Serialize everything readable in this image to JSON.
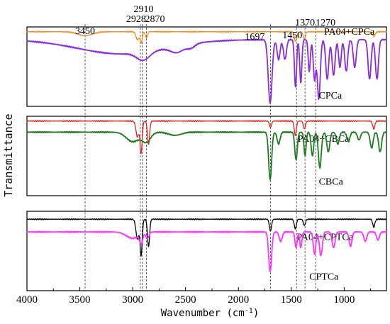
{
  "chart_data": {
    "type": "line",
    "title": "",
    "xlabel": "Wavenumber (cm",
    "xlabel_superscript": "-1",
    "xlabel_suffix": ")",
    "ylabel": "Transmittance",
    "xlim": [
      4000,
      600
    ],
    "x_reversed": true,
    "x_ticks": [
      4000,
      3500,
      3000,
      2500,
      2000,
      1500,
      1000
    ],
    "grid": false,
    "legend": "inline labels next to curves",
    "reference_lines": [
      3450,
      2928,
      2910,
      2870,
      1697,
      1450,
      1370,
      1270
    ],
    "peak_labels": [
      {
        "text": "3450",
        "x": 3450
      },
      {
        "text": "2928",
        "x": 2928
      },
      {
        "text": "2910",
        "x": 2910
      },
      {
        "text": "2870",
        "x": 2870
      },
      {
        "text": "1697",
        "x": 1697
      },
      {
        "text": "1450",
        "x": 1450
      },
      {
        "text": "1370",
        "x": 1370
      },
      {
        "text": "1270",
        "x": 1270
      }
    ],
    "panels": [
      {
        "series": [
          {
            "name": "PA04+CPCa",
            "color": "#f08a1c",
            "baseline": 0.06,
            "label_x": 1190,
            "label_y": 0.1,
            "features": [
              {
                "x": 3450,
                "w": 70,
                "d": 0.05
              },
              {
                "x": 2955,
                "w": 14,
                "d": 0.1
              },
              {
                "x": 2920,
                "w": 10,
                "d": 0.14
              },
              {
                "x": 2870,
                "w": 10,
                "d": 0.08
              },
              {
                "x": 1460,
                "w": 12,
                "d": 0.12
              },
              {
                "x": 1377,
                "w": 10,
                "d": 0.1
              },
              {
                "x": 720,
                "w": 12,
                "d": 0.06
              }
            ]
          },
          {
            "name": "CPCa",
            "color": "#8a2be2",
            "baseline": 0.16,
            "label_x": 1240,
            "label_y": 0.9,
            "features": [
              {
                "x": 3100,
                "w": 420,
                "d": 0.18
              },
              {
                "x": 2900,
                "w": 60,
                "d": 0.1
              },
              {
                "x": 2580,
                "w": 60,
                "d": 0.08
              },
              {
                "x": 2450,
                "w": 40,
                "d": 0.05
              },
              {
                "x": 1700,
                "w": 18,
                "d": 0.8
              },
              {
                "x": 1620,
                "w": 14,
                "d": 0.25
              },
              {
                "x": 1560,
                "w": 14,
                "d": 0.25
              },
              {
                "x": 1460,
                "w": 10,
                "d": 0.6
              },
              {
                "x": 1410,
                "w": 10,
                "d": 0.55
              },
              {
                "x": 1330,
                "w": 10,
                "d": 0.4
              },
              {
                "x": 1280,
                "w": 12,
                "d": 0.5
              },
              {
                "x": 1240,
                "w": 14,
                "d": 0.75
              },
              {
                "x": 1160,
                "w": 14,
                "d": 0.5
              },
              {
                "x": 1100,
                "w": 14,
                "d": 0.45
              },
              {
                "x": 1040,
                "w": 12,
                "d": 0.35
              },
              {
                "x": 980,
                "w": 14,
                "d": 0.4
              },
              {
                "x": 900,
                "w": 14,
                "d": 0.35
              },
              {
                "x": 760,
                "w": 14,
                "d": 0.5
              },
              {
                "x": 690,
                "w": 14,
                "d": 0.5
              }
            ]
          }
        ]
      },
      {
        "series": [
          {
            "name": "PA04+CBCa",
            "color": "#e8201c",
            "baseline": 0.06,
            "label_x": 1440,
            "label_y": 0.32,
            "features": [
              {
                "x": 2955,
                "w": 14,
                "d": 0.2
              },
              {
                "x": 2920,
                "w": 10,
                "d": 0.4
              },
              {
                "x": 2850,
                "w": 10,
                "d": 0.3
              },
              {
                "x": 1697,
                "w": 10,
                "d": 0.08
              },
              {
                "x": 1462,
                "w": 10,
                "d": 0.18
              },
              {
                "x": 1376,
                "w": 10,
                "d": 0.1
              },
              {
                "x": 720,
                "w": 10,
                "d": 0.1
              }
            ]
          },
          {
            "name": "CBCa",
            "color": "#1e7d1e",
            "baseline": 0.2,
            "label_x": 1240,
            "label_y": 0.86,
            "features": [
              {
                "x": 3000,
                "w": 60,
                "d": 0.12
              },
              {
                "x": 2870,
                "w": 40,
                "d": 0.12
              },
              {
                "x": 2600,
                "w": 60,
                "d": 0.04
              },
              {
                "x": 1700,
                "w": 14,
                "d": 0.6
              },
              {
                "x": 1620,
                "w": 14,
                "d": 0.15
              },
              {
                "x": 1455,
                "w": 12,
                "d": 0.35
              },
              {
                "x": 1370,
                "w": 10,
                "d": 0.3
              },
              {
                "x": 1300,
                "w": 12,
                "d": 0.3
              },
              {
                "x": 1230,
                "w": 14,
                "d": 0.45
              },
              {
                "x": 1150,
                "w": 14,
                "d": 0.25
              },
              {
                "x": 1060,
                "w": 14,
                "d": 0.15
              },
              {
                "x": 960,
                "w": 14,
                "d": 0.12
              },
              {
                "x": 860,
                "w": 14,
                "d": 0.1
              },
              {
                "x": 740,
                "w": 14,
                "d": 0.2
              },
              {
                "x": 660,
                "w": 14,
                "d": 0.25
              }
            ]
          }
        ]
      },
      {
        "series": [
          {
            "name": "PA04+CPTCa",
            "color": "#000000",
            "baseline": 0.1,
            "label_x": 1450,
            "label_y": 0.36,
            "features": [
              {
                "x": 2955,
                "w": 14,
                "d": 0.25
              },
              {
                "x": 2920,
                "w": 10,
                "d": 0.45
              },
              {
                "x": 2850,
                "w": 10,
                "d": 0.35
              },
              {
                "x": 1697,
                "w": 10,
                "d": 0.15
              },
              {
                "x": 1462,
                "w": 10,
                "d": 0.12
              },
              {
                "x": 1376,
                "w": 10,
                "d": 0.08
              },
              {
                "x": 720,
                "w": 10,
                "d": 0.1
              }
            ]
          },
          {
            "name": "CPTCa",
            "color": "#ff33ff",
            "baseline": 0.26,
            "label_x": 1330,
            "label_y": 0.86,
            "features": [
              {
                "x": 3000,
                "w": 60,
                "d": 0.08
              },
              {
                "x": 2920,
                "w": 14,
                "d": 0.12
              },
              {
                "x": 2860,
                "w": 14,
                "d": 0.08
              },
              {
                "x": 1700,
                "w": 14,
                "d": 0.5
              },
              {
                "x": 1600,
                "w": 14,
                "d": 0.12
              },
              {
                "x": 1455,
                "w": 10,
                "d": 0.2
              },
              {
                "x": 1410,
                "w": 10,
                "d": 0.2
              },
              {
                "x": 1280,
                "w": 12,
                "d": 0.28
              },
              {
                "x": 1220,
                "w": 14,
                "d": 0.3
              },
              {
                "x": 1100,
                "w": 14,
                "d": 0.2
              },
              {
                "x": 940,
                "w": 14,
                "d": 0.18
              },
              {
                "x": 800,
                "w": 14,
                "d": 0.12
              },
              {
                "x": 680,
                "w": 14,
                "d": 0.1
              }
            ]
          }
        ]
      }
    ]
  }
}
